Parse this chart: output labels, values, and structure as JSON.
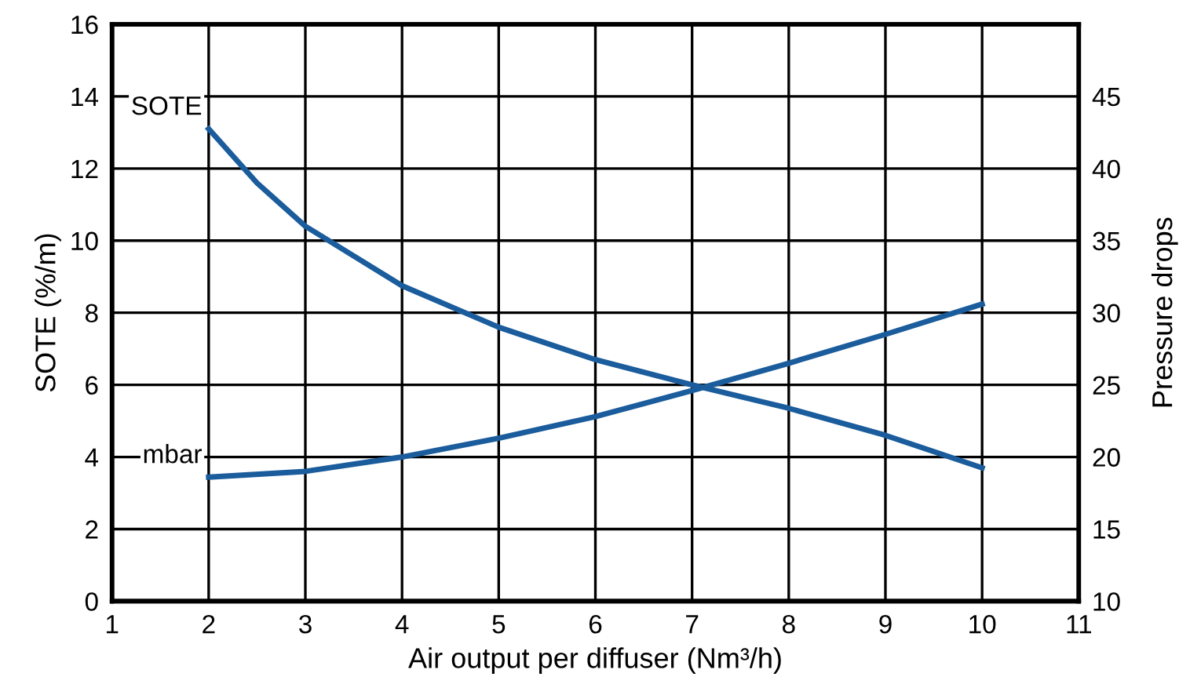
{
  "chart_data": {
    "type": "line",
    "xlabel": "Air output per diffuser (Nm³/h)",
    "ylabel": "SOTE (%/m)",
    "y2label": "Pressure drops",
    "xlim": [
      1,
      11
    ],
    "xticks": [
      1,
      2,
      3,
      4,
      5,
      6,
      7,
      8,
      9,
      10,
      11
    ],
    "ylim": [
      0,
      16
    ],
    "yticks": [
      0,
      2,
      4,
      6,
      8,
      10,
      12,
      14,
      16
    ],
    "y2lim": [
      10,
      50
    ],
    "y2ticks": [
      10,
      15,
      20,
      25,
      30,
      35,
      40,
      45
    ],
    "grid": true,
    "legend": false,
    "marker": "none",
    "line_style": "solid",
    "series": [
      {
        "name": "SOTE",
        "color": "#1a5c9c",
        "x": [
          2,
          2.5,
          3,
          4,
          5,
          6,
          7,
          8,
          9,
          10
        ],
        "values": [
          13.1,
          11.6,
          10.4,
          8.75,
          7.6,
          6.7,
          6.0,
          5.35,
          4.6,
          3.7
        ]
      },
      {
        "name": "mbar",
        "color": "#1a5c9c",
        "axis": "y2",
        "x": [
          2,
          3,
          4,
          5,
          6,
          7,
          8,
          9,
          10
        ],
        "values": [
          18.6,
          19.0,
          20.0,
          21.3,
          22.8,
          24.6,
          26.5,
          28.5,
          30.6
        ]
      }
    ]
  }
}
